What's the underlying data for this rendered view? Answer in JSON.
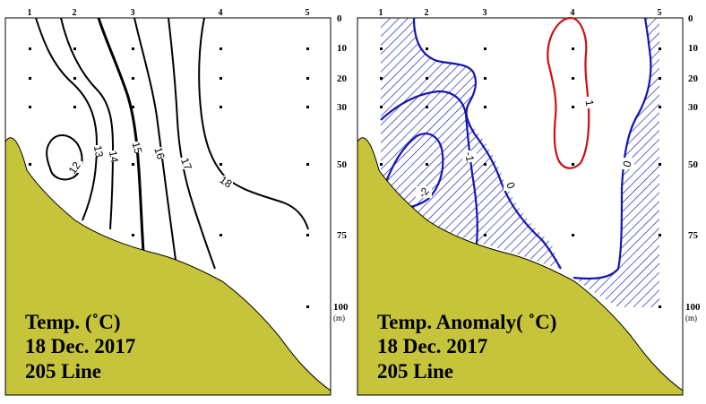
{
  "stations": [
    "1",
    "2",
    "3",
    "4",
    "5"
  ],
  "depths": [
    "0",
    "10",
    "20",
    "30",
    "50",
    "75",
    "100"
  ],
  "depth_unit": "(m)",
  "left_panel": {
    "title_lines": [
      "Temp. (˚C)",
      "18 Dec. 2017",
      "205 Line"
    ],
    "contour_labels": [
      "12",
      "13",
      "14",
      "15",
      "16",
      "17",
      "18"
    ]
  },
  "right_panel": {
    "title_lines": [
      "Temp. Anomaly( ˚C)",
      "18 Dec. 2017",
      "205 Line"
    ],
    "contour_labels": [
      "-2",
      "-1",
      "0",
      "1",
      "0"
    ],
    "negative_color": "#1515b0",
    "positive_color": "#cc1111",
    "hatch": "negative anomaly region"
  },
  "colors": {
    "land": "#c5c43a",
    "lines": "#000000"
  }
}
